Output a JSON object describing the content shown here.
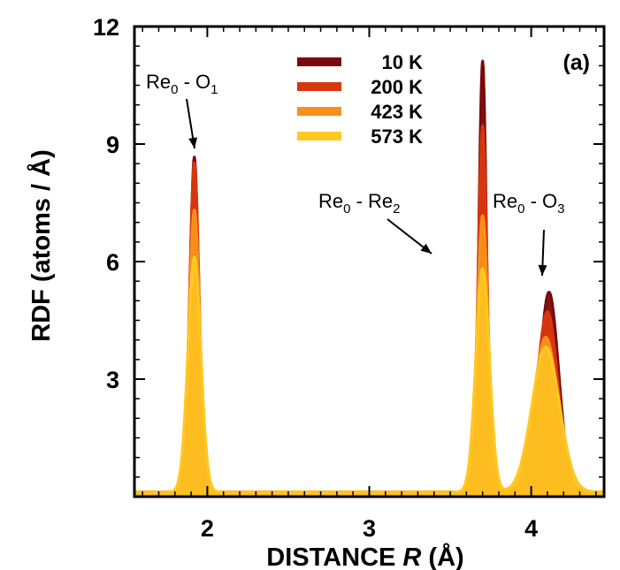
{
  "chart_data": {
    "type": "area",
    "panel_label": "(a)",
    "xlabel_prefix": "DISTANCE ",
    "xlabel_var": "R",
    "xlabel_suffix": " (Å)",
    "ylabel": "RDF (atoms / Å)",
    "xlim": [
      1.55,
      4.45
    ],
    "ylim": [
      0,
      12
    ],
    "x_ticks": [
      2,
      3,
      4
    ],
    "x_tick_labels": [
      "2",
      "3",
      "4"
    ],
    "y_ticks": [
      3,
      6,
      9,
      12
    ],
    "y_tick_labels": [
      "3",
      "6",
      "9",
      "12"
    ],
    "legend_position": "top-center",
    "series": [
      {
        "name": "10 K",
        "color": "#7a0a08",
        "peaks": [
          {
            "center": 1.92,
            "height": 8.55,
            "width": 0.028
          },
          {
            "center": 3.7,
            "height": 11.0,
            "width": 0.024
          },
          {
            "center": 4.11,
            "height": 5.1,
            "width": 0.06
          }
        ]
      },
      {
        "name": "200 K",
        "color": "#d8370e",
        "peaks": [
          {
            "center": 1.92,
            "height": 8.4,
            "width": 0.03
          },
          {
            "center": 3.7,
            "height": 9.35,
            "width": 0.028
          },
          {
            "center": 4.1,
            "height": 4.6,
            "width": 0.066
          }
        ]
      },
      {
        "name": "423 K",
        "color": "#f7901b",
        "peaks": [
          {
            "center": 1.92,
            "height": 7.2,
            "width": 0.034
          },
          {
            "center": 3.7,
            "height": 7.05,
            "width": 0.035
          },
          {
            "center": 4.09,
            "height": 3.95,
            "width": 0.075
          }
        ]
      },
      {
        "name": "573 K",
        "color": "#ffc822",
        "peaks": [
          {
            "center": 1.92,
            "height": 6.0,
            "width": 0.04
          },
          {
            "center": 3.7,
            "height": 5.7,
            "width": 0.042
          },
          {
            "center": 4.09,
            "height": 3.7,
            "width": 0.085
          }
        ]
      }
    ],
    "annotations": [
      {
        "label": "Re",
        "sub0": "0",
        "mid": " - O",
        "sub1": "1",
        "x": 1.92,
        "y": 8.6
      },
      {
        "label": "Re",
        "sub0": "0",
        "mid": " - Re",
        "sub1": "2",
        "x": 3.45,
        "y": 6.0
      },
      {
        "label": "Re",
        "sub0": "0",
        "mid": " - O",
        "sub1": "3",
        "x": 4.11,
        "y": 5.6
      }
    ]
  }
}
